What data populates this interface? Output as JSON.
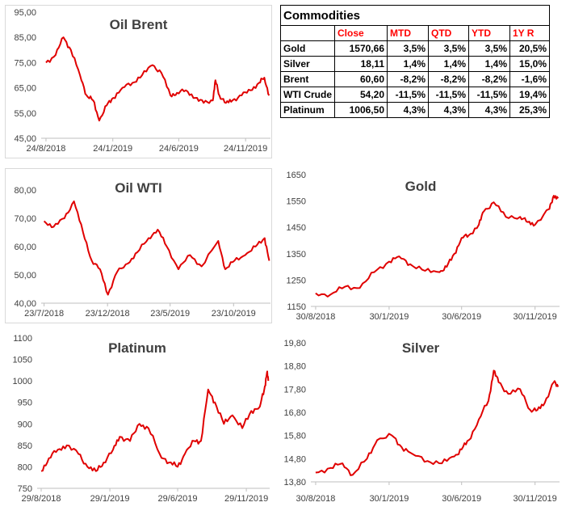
{
  "colors": {
    "line": "#e00000",
    "header_text": "#ff0000",
    "grid": "#d9d9d9"
  },
  "table": {
    "title": "Commodities",
    "headers": [
      "",
      "Close",
      "MTD",
      "QTD",
      "YTD",
      "1Y R"
    ],
    "rows": [
      [
        "Gold",
        "1570,66",
        "3,5%",
        "3,5%",
        "3,5%",
        "20,5%"
      ],
      [
        "Silver",
        "18,11",
        "1,4%",
        "1,4%",
        "1,4%",
        "15,0%"
      ],
      [
        "Brent",
        "60,60",
        "-8,2%",
        "-8,2%",
        "-8,2%",
        "-1,6%"
      ],
      [
        "WTI Crude",
        "54,20",
        "-11,5%",
        "-11,5%",
        "-11,5%",
        "19,4%"
      ],
      [
        "Platinum",
        "1006,50",
        "4,3%",
        "4,3%",
        "4,3%",
        "25,3%"
      ]
    ]
  },
  "chart_data": [
    {
      "type": "line",
      "title": "Oil Brent",
      "ylim": [
        45,
        95
      ],
      "yticks": [
        "45,00",
        "55,00",
        "65,00",
        "75,00",
        "85,00",
        "95,00"
      ],
      "xticks": [
        "24/8/2018",
        "24/1/2019",
        "24/6/2019",
        "24/11/2019"
      ],
      "x": [
        "2018-08-24",
        "2018-09-15",
        "2018-10-03",
        "2018-10-20",
        "2018-11-10",
        "2018-11-25",
        "2018-12-10",
        "2018-12-24",
        "2019-01-10",
        "2019-01-25",
        "2019-02-15",
        "2019-03-10",
        "2019-04-01",
        "2019-04-25",
        "2019-05-15",
        "2019-06-05",
        "2019-06-20",
        "2019-07-10",
        "2019-08-01",
        "2019-08-20",
        "2019-09-10",
        "2019-09-16",
        "2019-09-25",
        "2019-10-10",
        "2019-10-25",
        "2019-11-15",
        "2019-12-05",
        "2019-12-25",
        "2020-01-06",
        "2020-01-17"
      ],
      "series": [
        {
          "values": [
            75,
            78,
            85,
            80,
            70,
            62,
            60,
            52,
            58,
            61,
            65,
            67,
            70,
            74,
            71,
            62,
            63,
            64,
            61,
            59,
            60,
            68,
            62,
            59,
            60,
            62,
            64,
            67,
            69,
            62
          ]
        }
      ]
    },
    {
      "type": "line",
      "title": "Oil WTI",
      "ylim": [
        40,
        80
      ],
      "yticks": [
        "40,00",
        "50,00",
        "60,00",
        "70,00",
        "80,00"
      ],
      "xticks": [
        "23/7/2018",
        "23/12/2018",
        "23/5/2019",
        "23/10/2019"
      ],
      "x": [
        "2018-07-23",
        "2018-08-15",
        "2018-09-10",
        "2018-10-03",
        "2018-10-25",
        "2018-11-15",
        "2018-12-05",
        "2018-12-24",
        "2019-01-15",
        "2019-02-10",
        "2019-03-05",
        "2019-04-01",
        "2019-04-23",
        "2019-05-15",
        "2019-06-12",
        "2019-07-10",
        "2019-08-07",
        "2019-09-16",
        "2019-10-03",
        "2019-10-25",
        "2019-11-20",
        "2019-12-15",
        "2020-01-06",
        "2020-01-17"
      ],
      "series": [
        {
          "values": [
            69,
            67,
            70,
            76,
            65,
            55,
            52,
            43,
            51,
            54,
            58,
            63,
            66,
            60,
            52,
            57,
            53,
            62,
            52,
            55,
            57,
            60,
            63,
            55
          ]
        }
      ]
    },
    {
      "type": "line",
      "title": "Gold",
      "ylim": [
        1150,
        1650
      ],
      "yticks": [
        "1150",
        "1250",
        "1350",
        "1450",
        "1550",
        "1650"
      ],
      "xticks": [
        "30/8/2018",
        "30/1/2019",
        "30/6/2019",
        "30/11/2019"
      ],
      "x": [
        "2018-08-30",
        "2018-09-30",
        "2018-10-30",
        "2018-11-30",
        "2018-12-30",
        "2019-01-30",
        "2019-02-20",
        "2019-03-15",
        "2019-04-15",
        "2019-05-15",
        "2019-05-30",
        "2019-06-15",
        "2019-06-30",
        "2019-07-15",
        "2019-08-05",
        "2019-08-15",
        "2019-09-05",
        "2019-09-30",
        "2019-10-30",
        "2019-11-15",
        "2019-11-30",
        "2019-12-30",
        "2020-01-08",
        "2020-01-17"
      ],
      "series": [
        {
          "values": [
            1200,
            1195,
            1225,
            1220,
            1280,
            1320,
            1340,
            1310,
            1285,
            1280,
            1300,
            1350,
            1410,
            1420,
            1460,
            1510,
            1545,
            1490,
            1490,
            1470,
            1460,
            1520,
            1570,
            1560
          ]
        }
      ]
    },
    {
      "type": "line",
      "title": "Platinum",
      "ylim": [
        750,
        1100
      ],
      "yticks": [
        "750",
        "800",
        "850",
        "900",
        "950",
        "1000",
        "1050",
        "1100"
      ],
      "xticks": [
        "29/8/2018",
        "29/1/2019",
        "29/6/2019",
        "29/11/2019"
      ],
      "x": [
        "2018-08-29",
        "2018-09-15",
        "2018-10-05",
        "2018-10-25",
        "2018-11-20",
        "2018-12-10",
        "2018-12-29",
        "2019-01-15",
        "2019-02-05",
        "2019-02-20",
        "2019-03-15",
        "2019-04-05",
        "2019-04-25",
        "2019-05-20",
        "2019-06-10",
        "2019-06-29",
        "2019-07-15",
        "2019-08-05",
        "2019-08-20",
        "2019-09-05",
        "2019-09-20",
        "2019-10-10",
        "2019-10-29",
        "2019-11-20",
        "2019-12-10",
        "2019-12-29",
        "2020-01-08",
        "2020-01-14",
        "2020-01-17"
      ],
      "series": [
        {
          "values": [
            790,
            820,
            840,
            850,
            830,
            800,
            790,
            810,
            840,
            870,
            860,
            900,
            890,
            830,
            810,
            800,
            830,
            860,
            860,
            980,
            950,
            900,
            920,
            890,
            930,
            940,
            980,
            1020,
            1000
          ]
        }
      ]
    },
    {
      "type": "line",
      "title": "Silver",
      "ylim": [
        13.8,
        19.8
      ],
      "yticks": [
        "13,80",
        "14,80",
        "15,80",
        "16,80",
        "17,80",
        "18,80",
        "19,80"
      ],
      "xticks": [
        "30/8/2018",
        "30/1/2019",
        "30/6/2019",
        "30/11/2019"
      ],
      "x": [
        "2018-08-30",
        "2018-09-30",
        "2018-10-25",
        "2018-11-15",
        "2018-12-15",
        "2019-01-05",
        "2019-02-05",
        "2019-02-25",
        "2019-03-20",
        "2019-04-20",
        "2019-05-20",
        "2019-06-15",
        "2019-06-30",
        "2019-07-15",
        "2019-08-05",
        "2019-08-25",
        "2019-09-05",
        "2019-09-15",
        "2019-10-05",
        "2019-10-30",
        "2019-11-20",
        "2019-12-05",
        "2019-12-20",
        "2020-01-08",
        "2020-01-17"
      ],
      "series": [
        {
          "values": [
            14.2,
            14.4,
            14.6,
            14.1,
            14.8,
            15.6,
            15.8,
            15.3,
            15.0,
            14.7,
            14.6,
            14.9,
            15.2,
            15.6,
            16.5,
            17.3,
            18.6,
            18.1,
            17.6,
            17.8,
            16.9,
            16.9,
            17.2,
            18.1,
            17.9
          ]
        }
      ]
    }
  ]
}
